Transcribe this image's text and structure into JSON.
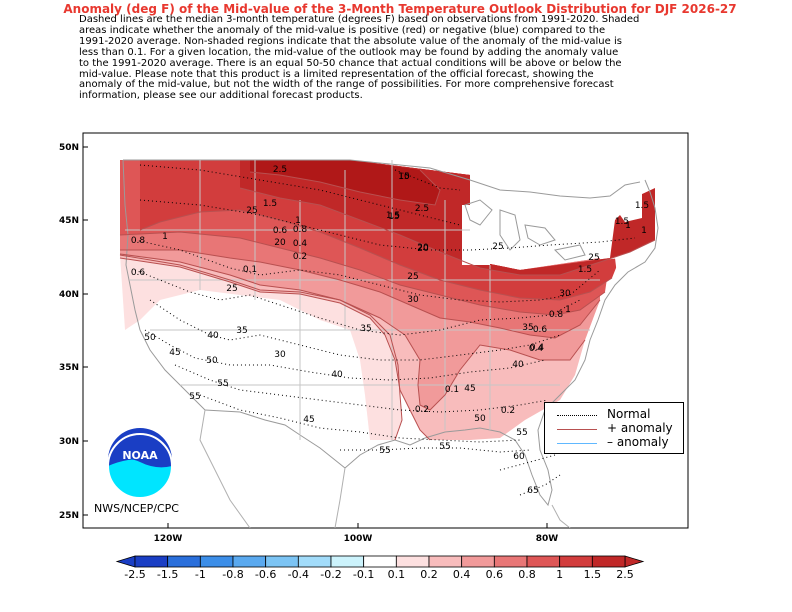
{
  "title": "Anomaly (deg F) of the Mid-value of the 3-Month Temperature Outlook Distribution for DJF 2026-27",
  "description_lines": [
    "Dashed lines are the median 3-month temperature (degrees F) based on observations from 1991-2020.  Shaded",
    "areas indicate whether the anomaly of the mid-value is positive (red) or negative (blue) compared to the",
    "1991-2020 average.   Non-shaded regions indicate that the absolute value of the anomaly of the mid-value is",
    "less than 0.1.   For a given location, the mid-value of the outlook may be found by adding the anomaly value",
    "to the 1991-2020 average. There is an equal 50-50 chance that actual conditions will be above or below the",
    "mid-value. Please note that this product is a limited representation of the official forecast, showing the",
    "anomaly of the mid-value, but not the width of the range of possibilities. For more comprehensive forecast",
    "information, please see our additional forecast products."
  ],
  "lat_labels": [
    "50N",
    "45N",
    "40N",
    "35N",
    "30N",
    "25N"
  ],
  "lon_labels": [
    "120W",
    "100W",
    "80W"
  ],
  "anomaly_labels": [
    "2.5",
    "1.5",
    "1",
    "0.8",
    "0.6",
    "0.4",
    "0.2",
    "0.1",
    "1.5",
    "2.5",
    "1",
    "0.8",
    "0.6",
    "0.4",
    "0.2",
    "0.1",
    "1.5",
    "1",
    "0.8",
    "0.6",
    "0.4",
    "0.2",
    "1.5",
    "1",
    "1.5",
    "1"
  ],
  "normal_labels": [
    "10",
    "15",
    "20",
    "25",
    "25",
    "30",
    "35",
    "40",
    "45",
    "50",
    "55",
    "60",
    "65",
    "20",
    "25",
    "30",
    "35",
    "40",
    "45",
    "50",
    "55",
    "55",
    "15",
    "25",
    "20",
    "25",
    "30",
    "35",
    "40",
    "45",
    "50",
    "55",
    "55"
  ],
  "legend": {
    "normal": "Normal",
    "plus": "+ anomaly",
    "minus": "– anomaly"
  },
  "credit": "NWS/NCEP/CPC",
  "logo_text": "NOAA",
  "colorbar": {
    "labels": [
      "-2.5",
      "-1.5",
      "-1",
      "-0.8",
      "-0.6",
      "-0.4",
      "-0.2",
      "-0.1",
      "0.1",
      "0.2",
      "0.4",
      "0.6",
      "0.8",
      "1",
      "1.5",
      "2.5"
    ],
    "colors": [
      "#1a3ec4",
      "#2a6fdb",
      "#3c8ee8",
      "#5aa9ef",
      "#7cc4f4",
      "#a2dcfa",
      "#ccf3fc",
      "#ffffff",
      "#fde0e0",
      "#f8bcbc",
      "#f19a9a",
      "#e87676",
      "#de5656",
      "#d23d3d",
      "#c02828"
    ]
  },
  "colors": {
    "title": "#e8382f",
    "plus_line": "#b85050",
    "minus_line": "#60b8ff",
    "normal_line": "#000000"
  }
}
